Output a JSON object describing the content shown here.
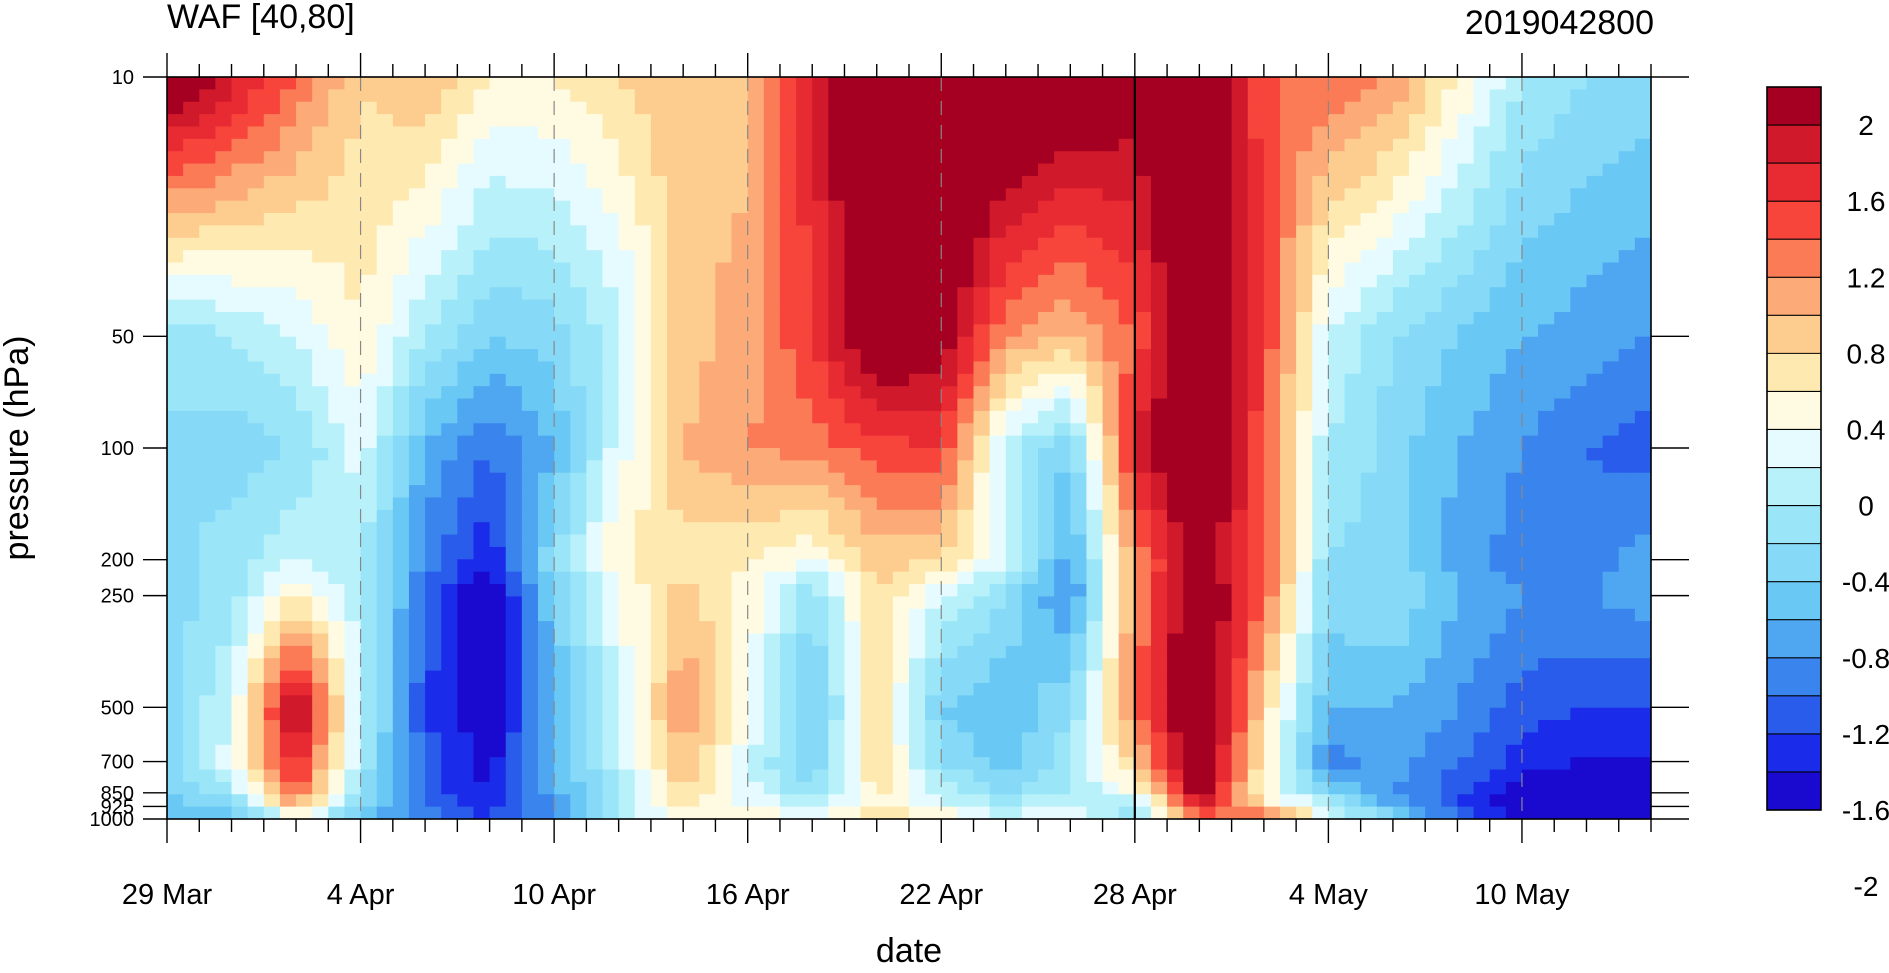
{
  "chart_data": {
    "type": "heatmap",
    "title_left": "WAF [40,80]",
    "title_right": "2019042800",
    "xlabel": "date",
    "ylabel": "pressure (hPa)",
    "x_ticks": [
      "29 Mar",
      "4 Apr",
      "10 Apr",
      "16 Apr",
      "22 Apr",
      "28 Apr",
      "4 May",
      "10 May"
    ],
    "x_start": "29 Mar",
    "x_end": "15 May",
    "marked_date": "28 Apr",
    "y_scale": "log",
    "y_ticks": [
      "10",
      "50",
      "100",
      "200",
      "250",
      "500",
      "700",
      "850",
      "925",
      "1000"
    ],
    "ylim": [
      1000,
      10
    ],
    "levels": [
      1000,
      925,
      850,
      700,
      500,
      250,
      200,
      100,
      50,
      10
    ],
    "colorbar": {
      "labels": [
        "2",
        "1.6",
        "1.2",
        "0.8",
        "0.4",
        "0",
        "-0.4",
        "-0.8",
        "-1.2",
        "-1.6",
        "-2"
      ],
      "bins": [
        {
          "color": "#a50021"
        },
        {
          "color": "#d01a2c"
        },
        {
          "color": "#e82a32"
        },
        {
          "color": "#f7453c"
        },
        {
          "color": "#fb7b57"
        },
        {
          "color": "#fcaa78"
        },
        {
          "color": "#fdcc8f"
        },
        {
          "color": "#feeab0"
        },
        {
          "color": "#fffbe2"
        },
        {
          "color": "#e6fbff"
        },
        {
          "color": "#b9f1fb"
        },
        {
          "color": "#9ae6f8"
        },
        {
          "color": "#86d9f7"
        },
        {
          "color": "#6ac8f5"
        },
        {
          "color": "#4ea7f0"
        },
        {
          "color": "#3a84ee"
        },
        {
          "color": "#2a5cec"
        },
        {
          "color": "#1a2cea"
        },
        {
          "color": "#1a0ad0"
        }
      ]
    },
    "field_days": [
      0,
      2,
      4,
      6,
      8,
      10,
      12,
      14,
      16,
      18,
      20,
      22,
      24,
      26,
      28,
      30,
      32,
      34,
      36,
      38,
      40,
      42,
      44,
      46
    ],
    "field": [
      [
        -0.6,
        -0.7,
        0.2,
        -0.5,
        -0.9,
        -1.2,
        -0.7,
        0.2,
        0.4,
        0.6,
        0.4,
        0.8,
        0.7,
        0.2,
        0.5,
        0.0,
        1.2,
        1.6,
        0.4,
        -0.3,
        -0.9,
        -1.4,
        -1.8,
        -2.1
      ],
      [
        -0.5,
        -0.3,
        1.0,
        -0.3,
        -1.0,
        -1.3,
        -0.8,
        0.0,
        0.6,
        0.4,
        0.1,
        0.6,
        0.3,
        0.1,
        0.2,
        -0.3,
        1.8,
        0.8,
        0.1,
        -0.6,
        -1.2,
        -1.6,
        -2.0,
        -2.0
      ],
      [
        -0.4,
        0.0,
        1.4,
        -0.2,
        -1.1,
        -1.4,
        -0.7,
        0.0,
        0.8,
        0.3,
        -0.2,
        0.7,
        0.1,
        -0.2,
        0.0,
        0.4,
        2.2,
        0.5,
        -0.3,
        -0.8,
        -1.1,
        -1.5,
        -1.7,
        -1.7
      ],
      [
        -0.3,
        0.3,
        1.8,
        0.0,
        -1.1,
        -1.5,
        -0.6,
        0.1,
        1.0,
        0.2,
        -0.4,
        0.8,
        -0.2,
        -0.5,
        -0.1,
        0.9,
        2.4,
        0.6,
        -0.9,
        -0.7,
        -1.0,
        -1.3,
        -1.4,
        -1.4
      ],
      [
        -0.3,
        0.2,
        2.2,
        0.1,
        -1.2,
        -1.6,
        -0.6,
        0.2,
        1.2,
        0.5,
        -0.5,
        0.8,
        -0.4,
        -0.6,
        -0.2,
        1.3,
        2.6,
        0.8,
        -0.6,
        -0.6,
        -0.8,
        -1.1,
        -1.2,
        -1.2
      ],
      [
        -0.3,
        -0.1,
        0.6,
        0.1,
        -1.0,
        -1.7,
        -0.4,
        0.4,
        0.9,
        0.5,
        -0.2,
        0.8,
        0.2,
        -0.2,
        -0.9,
        1.2,
        2.4,
        1.4,
        -0.3,
        -0.2,
        -0.6,
        -0.8,
        -0.8,
        -0.7
      ],
      [
        -0.3,
        -0.1,
        0.2,
        0.0,
        -0.9,
        -1.4,
        -0.2,
        0.6,
        0.7,
        0.6,
        0.4,
        0.9,
        0.8,
        0.2,
        -0.7,
        1.2,
        2.2,
        1.5,
        -0.2,
        -0.3,
        -0.7,
        -0.9,
        -0.9,
        -0.7
      ],
      [
        -0.2,
        -0.3,
        -0.2,
        0.3,
        -0.6,
        -1.0,
        -0.6,
        0.3,
        1.0,
        1.2,
        1.3,
        1.5,
        1.6,
        0.1,
        -0.4,
        1.8,
        2.6,
        1.4,
        0.0,
        -0.3,
        -0.6,
        -0.8,
        -1.0,
        -1.1
      ],
      [
        -0.2,
        0.0,
        0.2,
        0.6,
        0.0,
        -0.4,
        -0.3,
        0.1,
        0.9,
        1.1,
        1.6,
        2.4,
        2.2,
        1.2,
        1.0,
        1.4,
        2.6,
        1.6,
        0.2,
        -0.2,
        -0.4,
        -0.6,
        -0.7,
        -0.8
      ],
      [
        2.4,
        1.9,
        1.4,
        0.8,
        1.0,
        0.6,
        0.6,
        0.8,
        1.0,
        0.9,
        1.8,
        2.6,
        2.8,
        2.6,
        2.4,
        2.2,
        2.7,
        1.4,
        1.4,
        1.2,
        0.6,
        0.0,
        -0.2,
        -0.3
      ]
    ]
  }
}
